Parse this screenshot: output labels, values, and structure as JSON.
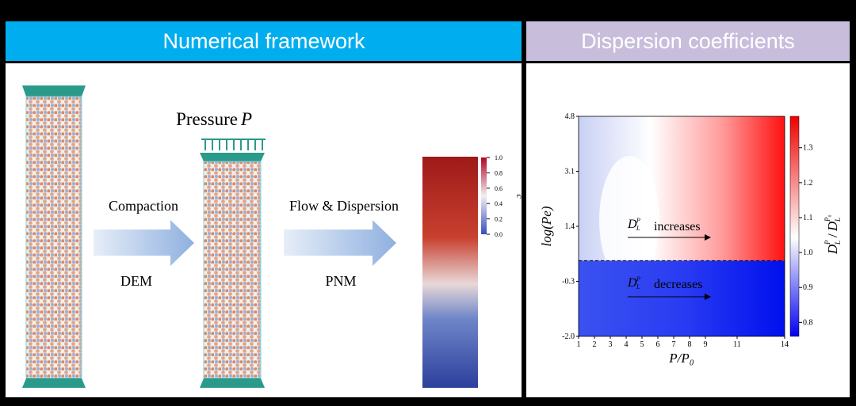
{
  "panels": [
    {
      "title": "Numerical framework"
    },
    {
      "title": "Dispersion coefficients"
    }
  ],
  "framework": {
    "pressure": "Pressure",
    "pressure_symbol": "P",
    "steps": [
      {
        "label": "Compaction",
        "method": "DEM"
      },
      {
        "label": "Flow & Dispersion",
        "method": "PNM"
      }
    ],
    "concentration_bar": {
      "label": "c",
      "lim": [
        0,
        1
      ],
      "ticks": [
        {
          "value": 1,
          "label": "1.0"
        },
        0.8,
        0.6,
        0.4,
        0.2,
        {
          "value": 0,
          "label": "0.0"
        }
      ]
    }
  },
  "chart_data": {
    "type": "heatmap",
    "xlabel": "P/P₀",
    "ylabel": "log(Pe)",
    "xlim": [
      1,
      14
    ],
    "xticks": [
      1,
      2,
      3,
      4,
      5,
      6,
      7,
      8,
      9,
      11,
      14
    ],
    "ylim": [
      -2,
      4.8
    ],
    "yticks": [
      4.8,
      3.1,
      1.4,
      -0.3,
      {
        "value": -2,
        "label": "-2.0"
      }
    ],
    "boundary": 0.34,
    "colorbar": {
      "lim": [
        0.76,
        1.39
      ],
      "ticks": [
        1.3,
        1.2,
        1.1,
        {
          "value": 1,
          "label": "1.0"
        },
        0.9,
        0.8
      ],
      "label_symbol": "D",
      "label_sub": "L",
      "label_sup": "P",
      "label_sep": "/",
      "label_sup2": "P₀"
    },
    "annotations": [
      {
        "symbol": "D",
        "sub": "L",
        "sup": "P",
        "text": "increases"
      },
      {
        "symbol": "D",
        "sub": "L",
        "sup": "P",
        "text": "decreases"
      }
    ]
  }
}
